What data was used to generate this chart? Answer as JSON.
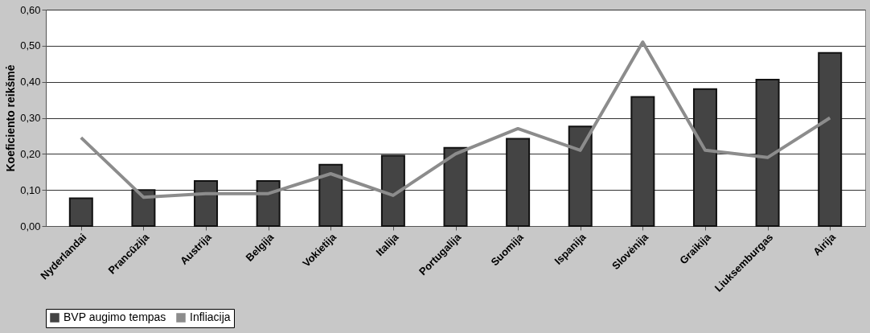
{
  "chart_data": {
    "type": "bar",
    "ylabel": "Koeficiento reikšmė",
    "categories": [
      "Nyderlandai",
      "Prancūzija",
      "Austrija",
      "Belgija",
      "Vokietija",
      "Italija",
      "Portugalija",
      "Suomija",
      "Ispanija",
      "Slovėnija",
      "Graikija",
      "Liuksemburgas",
      "Airija"
    ],
    "series": [
      {
        "name": "BVP augimo tempas",
        "color": "#444444",
        "values": [
          0.077,
          0.1,
          0.125,
          0.125,
          0.17,
          0.195,
          0.217,
          0.242,
          0.276,
          0.358,
          0.38,
          0.406,
          0.48
        ]
      },
      {
        "name": "Infliacija",
        "type": "line",
        "color": "#8c8c8c",
        "values": [
          0.245,
          0.08,
          0.09,
          0.09,
          0.145,
          0.085,
          0.2,
          0.27,
          0.21,
          0.51,
          0.21,
          0.19,
          0.3
        ]
      }
    ],
    "ylim": [
      0,
      0.6
    ],
    "yticks": [
      {
        "value": 0,
        "label": "0,00"
      },
      {
        "value": 0.1,
        "label": "0,10"
      },
      {
        "value": 0.2,
        "label": "0,20"
      },
      {
        "value": 0.3,
        "label": "0,30"
      },
      {
        "value": 0.4,
        "label": "0,40"
      },
      {
        "value": 0.5,
        "label": "0,50"
      },
      {
        "value": 0.6,
        "label": "0,60"
      }
    ],
    "grid": "y",
    "legend": "bottom"
  }
}
